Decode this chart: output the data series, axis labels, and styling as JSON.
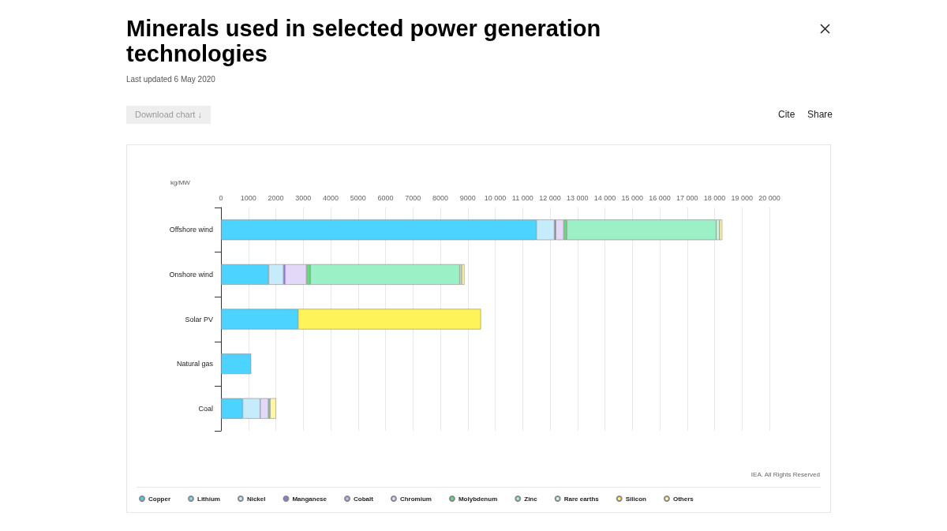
{
  "chart_data": {
    "type": "bar",
    "orientation": "horizontal",
    "stacked": true,
    "title": "Minerals used in selected power generation technologies",
    "subtitle": "Last updated 6 May 2020",
    "xlabel": "kg/MW",
    "annotations": [
      "IEA. All Rights Reserved",
      "Download chart ↓",
      "Cite",
      "Share"
    ],
    "categories": [
      "Offshore wind",
      "Onshore wind",
      "Solar PV",
      "Natural gas",
      "Coal"
    ],
    "series": [
      {
        "name": "Copper",
        "color": "#4cd3ff",
        "values": [
          11500,
          1740,
          2810,
          1100,
          790
        ]
      },
      {
        "name": "Lithium",
        "color": "#84dcf6",
        "values": [
          null,
          null,
          null,
          null,
          null
        ]
      },
      {
        "name": "Nickel",
        "color": "#c6ecfb",
        "values": [
          660,
          540,
          null,
          null,
          640
        ]
      },
      {
        "name": "Manganese",
        "color": "#9b6fe0",
        "values": [
          50,
          60,
          null,
          null,
          null
        ]
      },
      {
        "name": "Cobalt",
        "color": "#c9b3f0",
        "values": [
          null,
          null,
          null,
          null,
          null
        ]
      },
      {
        "name": "Chromium",
        "color": "#e4d8f8",
        "values": [
          290,
          780,
          null,
          null,
          300
        ]
      },
      {
        "name": "Molybdenum",
        "color": "#5ce07f",
        "values": [
          110,
          140,
          null,
          null,
          60
        ]
      },
      {
        "name": "Zinc",
        "color": "#9cf0c6",
        "values": [
          5450,
          5450,
          null,
          null,
          null
        ]
      },
      {
        "name": "Rare earths",
        "color": "#d5f5e3",
        "values": [
          120,
          70,
          null,
          null,
          null
        ]
      },
      {
        "name": "Silicon",
        "color": "#fff35a",
        "values": [
          null,
          null,
          6670,
          null,
          null
        ]
      },
      {
        "name": "Others",
        "color": "#fff7a6",
        "values": [
          100,
          100,
          null,
          null,
          220
        ]
      }
    ],
    "xlim": [
      0,
      20000
    ],
    "xticks": [
      0,
      1000,
      2000,
      3000,
      4000,
      5000,
      6000,
      7000,
      8000,
      9000,
      {
        "value": 10000,
        "label": "10 000"
      },
      {
        "value": 11000,
        "label": "11 000"
      },
      {
        "value": 12000,
        "label": "12 000"
      },
      {
        "value": 13000,
        "label": "13 000"
      },
      {
        "value": 14000,
        "label": "14 000"
      },
      {
        "value": 15000,
        "label": "15 000"
      },
      {
        "value": 16000,
        "label": "16 000"
      },
      {
        "value": 17000,
        "label": "17 000"
      },
      {
        "value": 18000,
        "label": "18 000"
      },
      {
        "value": 19000,
        "label": "19 000"
      },
      {
        "value": 20000,
        "label": "20 000"
      }
    ],
    "grid": "x",
    "legend": "bottom"
  }
}
